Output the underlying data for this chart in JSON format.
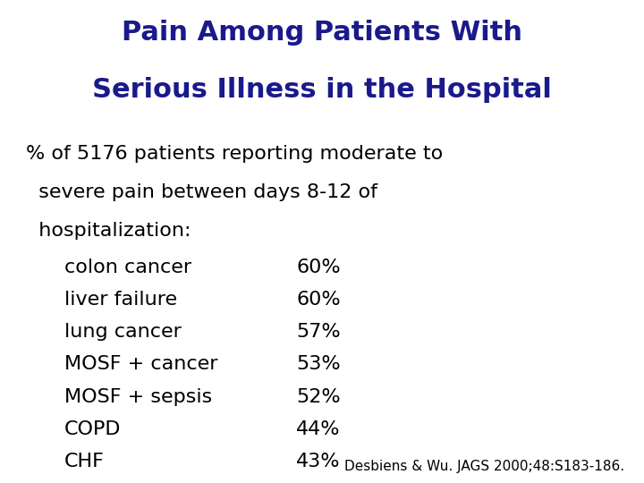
{
  "title_line1": "Pain Among Patients With",
  "title_line2": "Serious Illness in the Hospital",
  "title_color": "#1a1a8c",
  "background_color": "#ffffff",
  "body_text_color": "#000000",
  "intro_line1": "% of 5176 patients reporting moderate to",
  "intro_line2_prefix": "  severe pain ",
  "intro_line2_underline": "between days 8-12",
  "intro_line2_suffix": " of",
  "intro_line3": "  hospitalization:",
  "conditions": [
    "colon cancer",
    "liver failure",
    "lung cancer",
    "MOSF + cancer",
    "MOSF + sepsis",
    "COPD",
    "CHF"
  ],
  "percentages": [
    "60%",
    "60%",
    "57%",
    "53%",
    "52%",
    "44%",
    "43%"
  ],
  "citation": "Desbiens & Wu. JAGS 2000;48:S183-186.",
  "title_fontsize": 22,
  "body_fontsize": 16,
  "citation_fontsize": 11
}
